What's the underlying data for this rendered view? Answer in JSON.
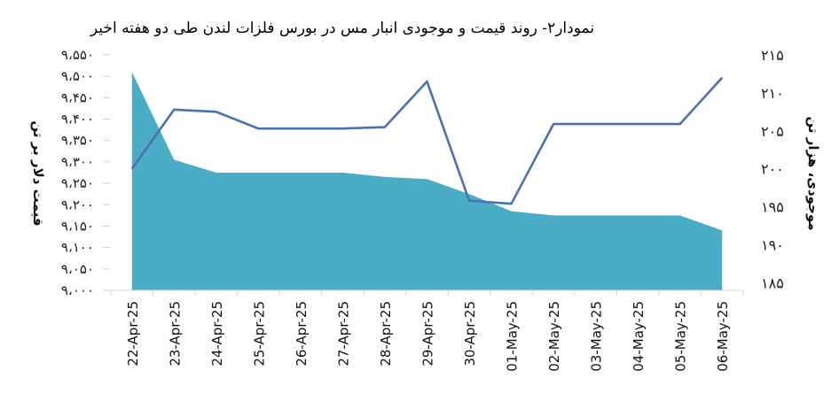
{
  "chart_data": {
    "type": "area+line",
    "title": "نمودار۲- روند قیمت و موجودی انبار مس در بورس فلزات لندن طی دو هفته اخیر",
    "categories": [
      "22-Apr-25",
      "23-Apr-25",
      "24-Apr-25",
      "25-Apr-25",
      "26-Apr-25",
      "27-Apr-25",
      "28-Apr-25",
      "29-Apr-25",
      "30-Apr-25",
      "01-May-25",
      "02-May-25",
      "03-May-25",
      "04-May-25",
      "05-May-25",
      "06-May-25"
    ],
    "y_left": {
      "label": "قیمت دلار بر تن",
      "ticks": [
        "۹،۰۰۰",
        "۹،۰۵۰",
        "۹،۱۰۰",
        "۹،۱۵۰",
        "۹،۲۰۰",
        "۹،۲۵۰",
        "۹،۳۰۰",
        "۹،۳۵۰",
        "۹،۴۰۰",
        "۹،۴۵۰",
        "۹،۵۰۰",
        "۹،۵۵۰"
      ],
      "ylim": [
        9000,
        9550
      ]
    },
    "y_right": {
      "label": "موجودی، هزار تن",
      "ticks": [
        "۱۸۵",
        "۱۹۰",
        "۱۹۵",
        "۲۰۰",
        "۲۰۵",
        "۲۱۰",
        "۲۱۵"
      ],
      "ylim": [
        184,
        215
      ]
    },
    "series": [
      {
        "type": "area",
        "axis": "left",
        "color": "#4bacc6",
        "values": [
          9510,
          9305,
          9275,
          9275,
          9275,
          9275,
          9265,
          9260,
          9225,
          9185,
          9175,
          9175,
          9175,
          9175,
          9140
        ]
      },
      {
        "type": "line",
        "axis": "right",
        "color": "#4a72b0",
        "values": [
          200.0,
          207.8,
          207.5,
          205.3,
          205.3,
          205.3,
          205.5,
          211.5,
          195.8,
          195.4,
          205.9,
          205.9,
          205.9,
          205.9,
          212.0
        ]
      }
    ],
    "grid": false,
    "legend": "none"
  }
}
